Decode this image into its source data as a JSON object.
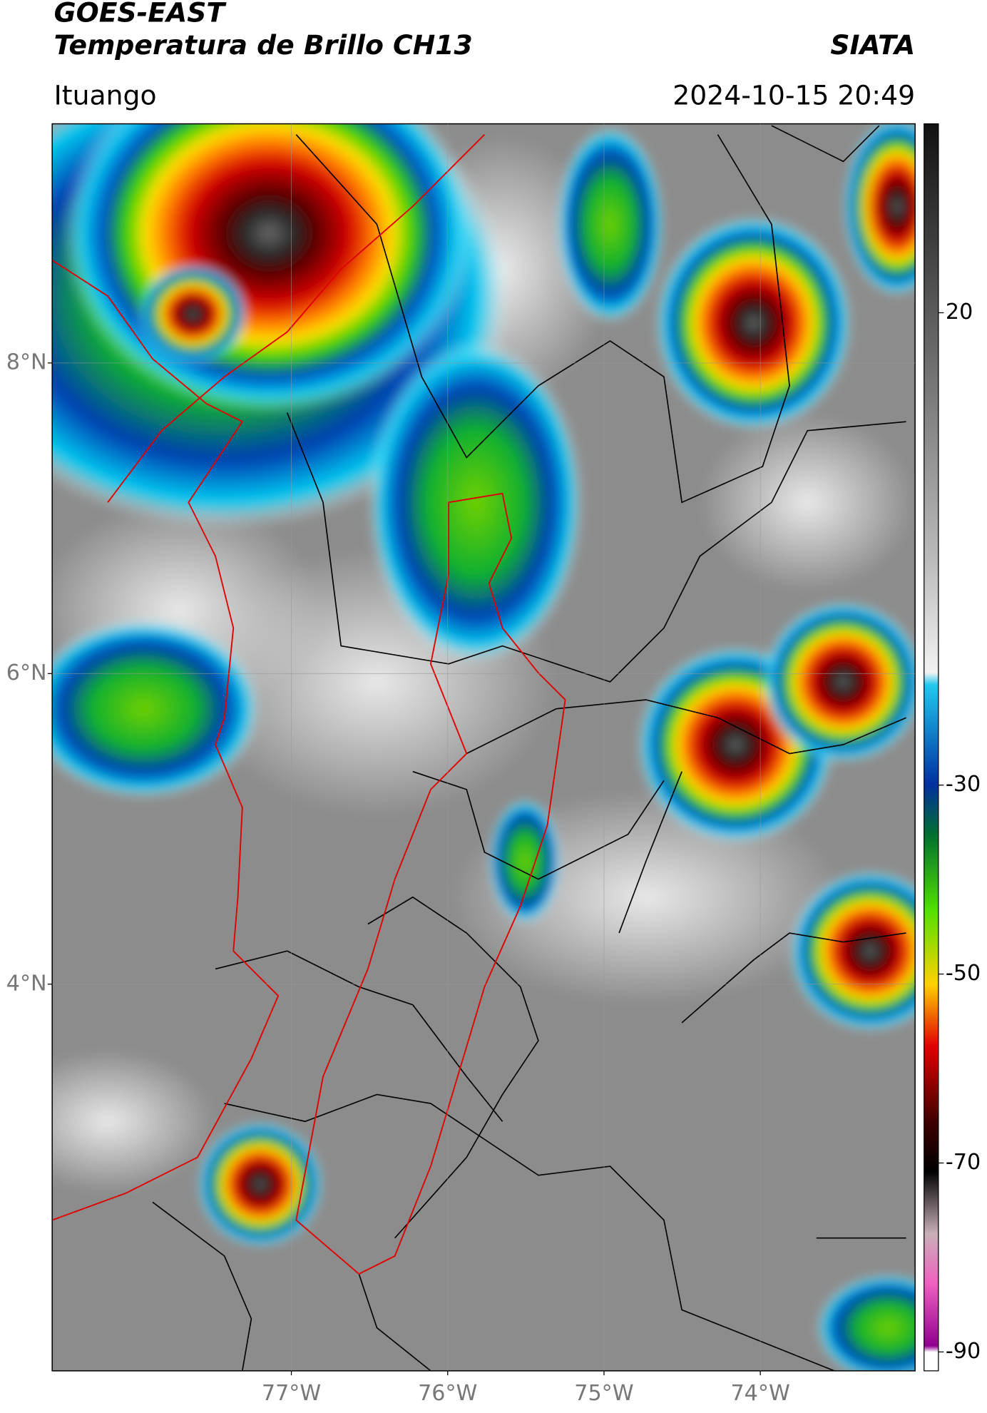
{
  "header": {
    "title": "GOES-EAST",
    "subtitle": "Temperatura de Brillo CH13",
    "agency": "SIATA",
    "location": "Ituango",
    "timestamp": "2024-10-15 20:49"
  },
  "map": {
    "latlim": [
      1.51,
      9.54
    ],
    "lonlim": [
      -78.53,
      -73.01
    ],
    "latticks": [
      {
        "value": 8,
        "label": "8°N"
      },
      {
        "value": 6,
        "label": "6°N"
      },
      {
        "value": 4,
        "label": "4°N"
      }
    ],
    "lonticks": [
      {
        "value": -77,
        "label": "77°W"
      },
      {
        "value": -76,
        "label": "76°W"
      },
      {
        "value": -75,
        "label": "75°W"
      },
      {
        "value": -74,
        "label": "74°W"
      }
    ],
    "grid": true,
    "colorbar": {
      "lim": [
        -92,
        40
      ],
      "ticks": [
        20,
        -30,
        -50,
        -70,
        -90
      ]
    }
  }
}
